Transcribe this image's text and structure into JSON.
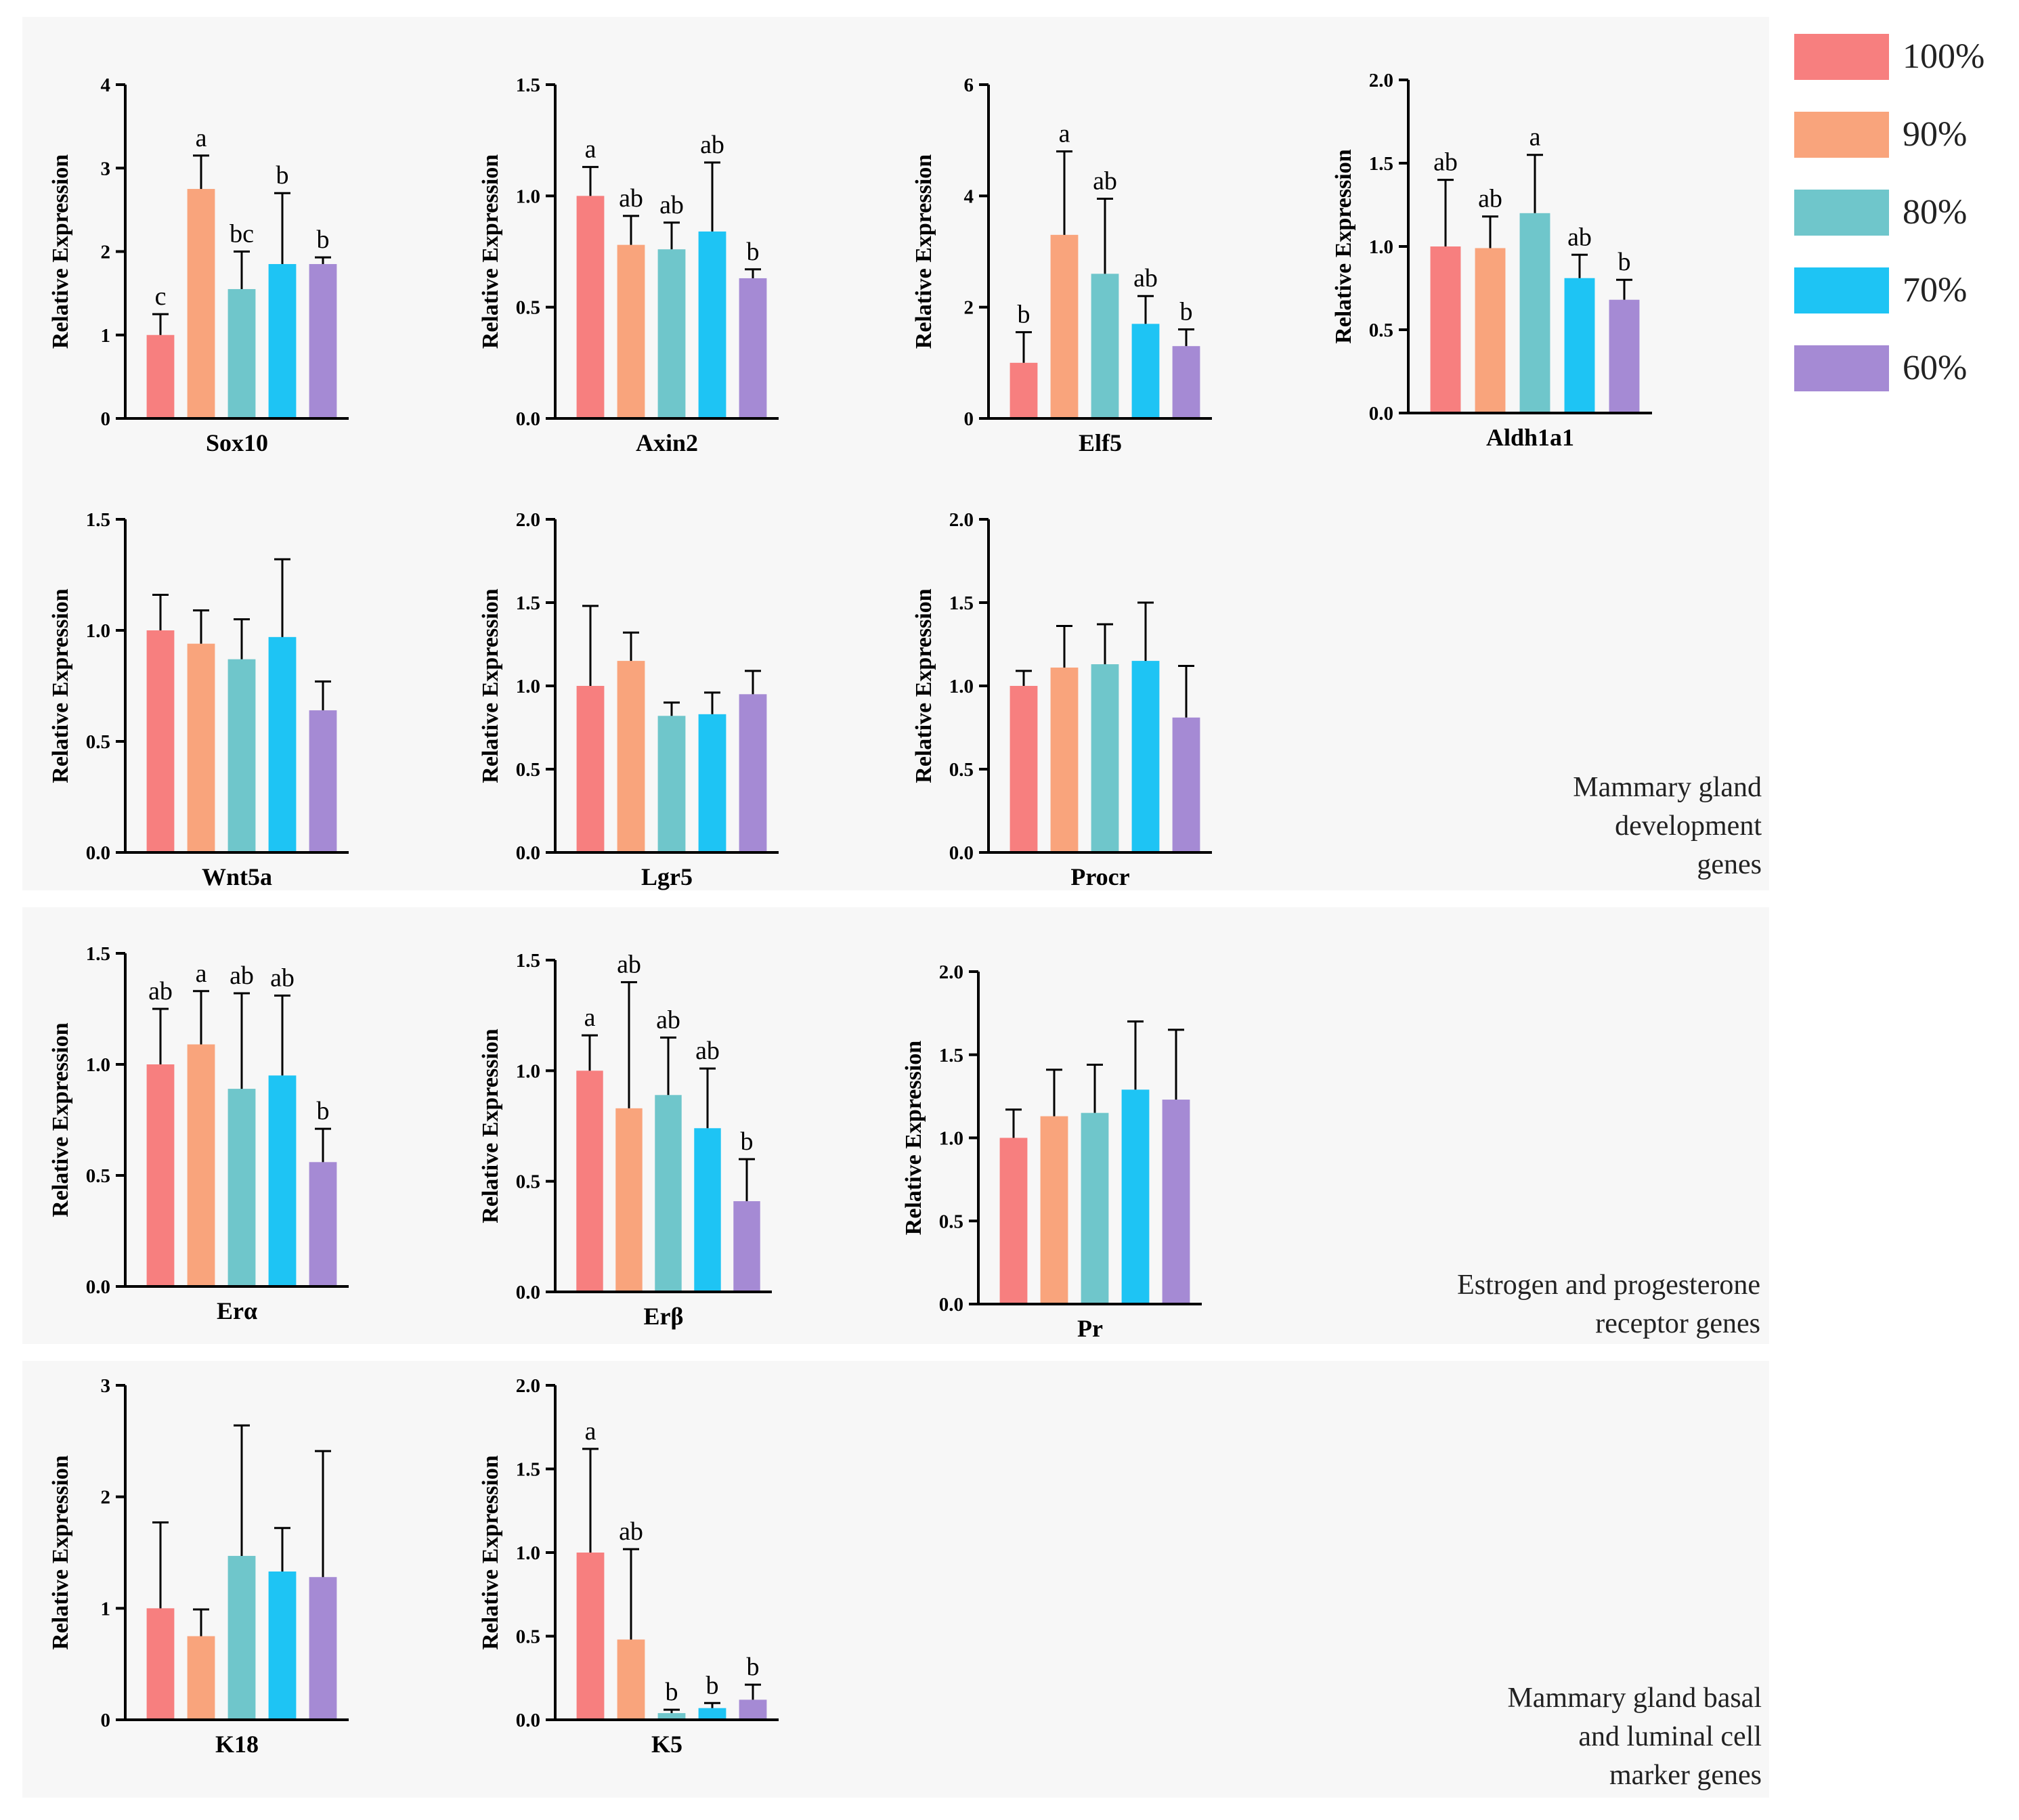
{
  "legend": [
    {
      "label": "100%",
      "color": "#f77f7f"
    },
    {
      "label": "90%",
      "color": "#f9a47c"
    },
    {
      "label": "80%",
      "color": "#6fc6cb"
    },
    {
      "label": "70%",
      "color": "#1ec4f4"
    },
    {
      "label": "60%",
      "color": "#a58ad4"
    }
  ],
  "sections": [
    {
      "id": "dev",
      "lines": [
        "Mammary gland",
        "development",
        "genes"
      ]
    },
    {
      "id": "rec",
      "lines": [
        "Estrogen and progesterone",
        "receptor genes"
      ]
    },
    {
      "id": "mark",
      "lines": [
        "Mammary gland basal",
        "and  luminal cell",
        "marker genes"
      ]
    }
  ],
  "chart_data": [
    {
      "type": "bar",
      "gene": "Sox10",
      "ylabel": "Relative Expression",
      "ylim": [
        0,
        4
      ],
      "yticks": [
        "0",
        "1",
        "2",
        "3",
        "4"
      ],
      "categories": [
        "100%",
        "90%",
        "80%",
        "70%",
        "60%"
      ],
      "values": [
        1.0,
        2.75,
        1.55,
        1.85,
        1.85
      ],
      "errors": [
        0.25,
        0.4,
        0.45,
        0.85,
        0.08
      ],
      "letters": [
        "c",
        "a",
        "bc",
        "b",
        "b"
      ]
    },
    {
      "type": "bar",
      "gene": "Axin2",
      "ylabel": "Relative Expression",
      "ylim": [
        0,
        1.5
      ],
      "yticks": [
        "0.0",
        "0.5",
        "1.0",
        "1.5"
      ],
      "categories": [
        "100%",
        "90%",
        "80%",
        "70%",
        "60%"
      ],
      "values": [
        1.0,
        0.78,
        0.76,
        0.84,
        0.63
      ],
      "errors": [
        0.13,
        0.13,
        0.12,
        0.31,
        0.04
      ],
      "letters": [
        "a",
        "ab",
        "ab",
        "ab",
        "b"
      ]
    },
    {
      "type": "bar",
      "gene": "Elf5",
      "ylabel": "Relative Expression",
      "ylim": [
        0,
        6
      ],
      "yticks": [
        "0",
        "2",
        "4",
        "6"
      ],
      "categories": [
        "100%",
        "90%",
        "80%",
        "70%",
        "60%"
      ],
      "values": [
        1.0,
        3.3,
        2.6,
        1.7,
        1.3
      ],
      "errors": [
        0.55,
        1.5,
        1.35,
        0.5,
        0.3
      ],
      "letters": [
        "b",
        "a",
        "ab",
        "ab",
        "b"
      ]
    },
    {
      "type": "bar",
      "gene": "Aldh1a1",
      "ylabel": "Relative Expression",
      "ylim": [
        0,
        2.0
      ],
      "yticks": [
        "0.0",
        "0.5",
        "1.0",
        "1.5",
        "2.0"
      ],
      "categories": [
        "100%",
        "90%",
        "80%",
        "70%",
        "60%"
      ],
      "values": [
        1.0,
        0.99,
        1.2,
        0.81,
        0.68
      ],
      "errors": [
        0.4,
        0.19,
        0.35,
        0.14,
        0.12
      ],
      "letters": [
        "ab",
        "ab",
        "a",
        "ab",
        "b"
      ]
    },
    {
      "type": "bar",
      "gene": "Wnt5a",
      "ylabel": "Relative Expression",
      "ylim": [
        0,
        1.5
      ],
      "yticks": [
        "0.0",
        "0.5",
        "1.0",
        "1.5"
      ],
      "categories": [
        "100%",
        "90%",
        "80%",
        "70%",
        "60%"
      ],
      "values": [
        1.0,
        0.94,
        0.87,
        0.97,
        0.64
      ],
      "errors": [
        0.16,
        0.15,
        0.18,
        0.35,
        0.13
      ],
      "letters": [
        "",
        "",
        "",
        "",
        ""
      ]
    },
    {
      "type": "bar",
      "gene": "Lgr5",
      "ylabel": "Relative Expression",
      "ylim": [
        0,
        2.0
      ],
      "yticks": [
        "0.0",
        "0.5",
        "1.0",
        "1.5",
        "2.0"
      ],
      "categories": [
        "100%",
        "90%",
        "80%",
        "70%",
        "60%"
      ],
      "values": [
        1.0,
        1.15,
        0.82,
        0.83,
        0.95
      ],
      "errors": [
        0.48,
        0.17,
        0.08,
        0.13,
        0.14
      ],
      "letters": [
        "",
        "",
        "",
        "",
        ""
      ]
    },
    {
      "type": "bar",
      "gene": "Procr",
      "ylabel": "Relative Expression",
      "ylim": [
        0,
        2.0
      ],
      "yticks": [
        "0.0",
        "0.5",
        "1.0",
        "1.5",
        "2.0"
      ],
      "categories": [
        "100%",
        "90%",
        "80%",
        "70%",
        "60%"
      ],
      "values": [
        1.0,
        1.11,
        1.13,
        1.15,
        0.81
      ],
      "errors": [
        0.09,
        0.25,
        0.24,
        0.35,
        0.31
      ],
      "letters": [
        "",
        "",
        "",
        "",
        ""
      ]
    },
    {
      "type": "bar",
      "gene": "Erα",
      "ylabel": "Relative Expression",
      "ylim": [
        0,
        1.5
      ],
      "yticks": [
        "0.0",
        "0.5",
        "1.0",
        "1.5"
      ],
      "categories": [
        "100%",
        "90%",
        "80%",
        "70%",
        "60%"
      ],
      "values": [
        1.0,
        1.09,
        0.89,
        0.95,
        0.56
      ],
      "errors": [
        0.25,
        0.24,
        0.43,
        0.36,
        0.15
      ],
      "letters": [
        "ab",
        "a",
        "ab",
        "ab",
        "b"
      ]
    },
    {
      "type": "bar",
      "gene": "Erβ",
      "ylabel": "Relative Expression",
      "ylim": [
        0,
        1.5
      ],
      "yticks": [
        "0.0",
        "0.5",
        "1.0",
        "1.5"
      ],
      "categories": [
        "100%",
        "90%",
        "80%",
        "70%",
        "60%"
      ],
      "values": [
        1.0,
        0.83,
        0.89,
        0.74,
        0.41
      ],
      "errors": [
        0.16,
        0.57,
        0.26,
        0.27,
        0.19
      ],
      "letters": [
        "a",
        "ab",
        "ab",
        "ab",
        "b"
      ]
    },
    {
      "type": "bar",
      "gene": "Pr",
      "ylabel": "Relative Expression",
      "ylim": [
        0,
        2.0
      ],
      "yticks": [
        "0.0",
        "0.5",
        "1.0",
        "1.5",
        "2.0"
      ],
      "categories": [
        "100%",
        "90%",
        "80%",
        "70%",
        "60%"
      ],
      "values": [
        1.0,
        1.13,
        1.15,
        1.29,
        1.23
      ],
      "errors": [
        0.17,
        0.28,
        0.29,
        0.41,
        0.42
      ],
      "letters": [
        "",
        "",
        "",
        "",
        ""
      ]
    },
    {
      "type": "bar",
      "gene": "K18",
      "ylabel": "Relative Expression",
      "ylim": [
        0,
        3
      ],
      "yticks": [
        "0",
        "1",
        "2",
        "3"
      ],
      "categories": [
        "100%",
        "90%",
        "80%",
        "70%",
        "60%"
      ],
      "values": [
        1.0,
        0.75,
        1.47,
        1.33,
        1.28
      ],
      "errors": [
        0.77,
        0.24,
        1.17,
        0.39,
        1.13
      ],
      "letters": [
        "",
        "",
        "",
        "",
        ""
      ]
    },
    {
      "type": "bar",
      "gene": "K5",
      "ylabel": "Relative Expression",
      "ylim": [
        0,
        2.0
      ],
      "yticks": [
        "0.0",
        "0.5",
        "1.0",
        "1.5",
        "2.0"
      ],
      "categories": [
        "100%",
        "90%",
        "80%",
        "70%",
        "60%"
      ],
      "values": [
        1.0,
        0.48,
        0.04,
        0.07,
        0.12
      ],
      "errors": [
        0.62,
        0.54,
        0.02,
        0.03,
        0.09
      ],
      "letters": [
        "a",
        "ab",
        "b",
        "b",
        "b"
      ]
    }
  ]
}
